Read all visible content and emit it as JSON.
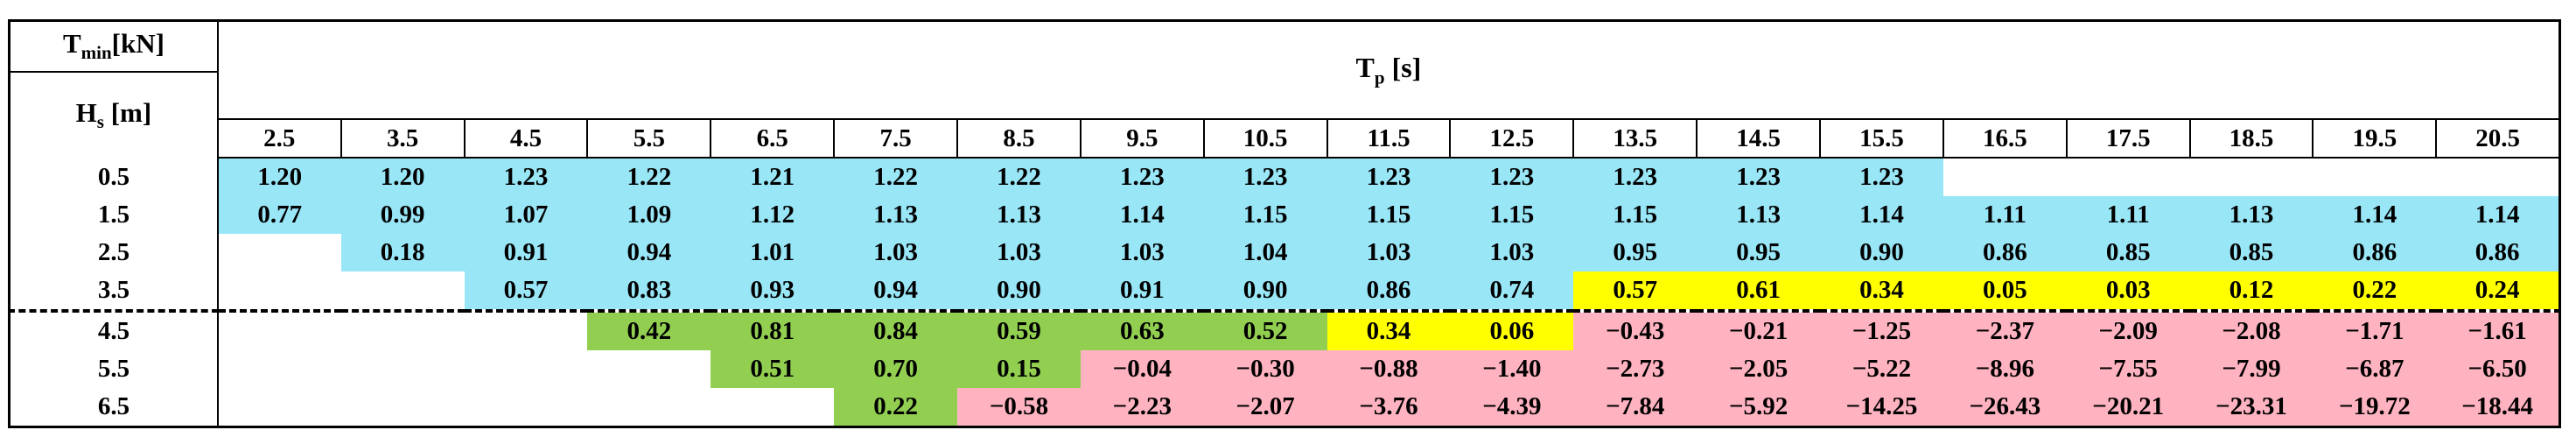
{
  "header": {
    "tmin_main": "T",
    "tmin_sub": "min",
    "tmin_unit": "[kN]",
    "hs_main": "H",
    "hs_sub": "s",
    "hs_unit": " [m]",
    "tp_main": "T",
    "tp_sub": "p",
    "tp_unit": " [s]"
  },
  "columns": [
    "2.5",
    "3.5",
    "4.5",
    "5.5",
    "6.5",
    "7.5",
    "8.5",
    "9.5",
    "10.5",
    "11.5",
    "12.5",
    "13.5",
    "14.5",
    "15.5",
    "16.5",
    "17.5",
    "18.5",
    "19.5",
    "20.5"
  ],
  "colors": {
    "blue": "#99e6f7",
    "yellow": "#ffff00",
    "green": "#92cf50",
    "pink": "#ffb3c1",
    "empty": "#ffffff"
  },
  "rows": [
    {
      "hs": "0.5",
      "values": [
        "1.20",
        "1.20",
        "1.23",
        "1.22",
        "1.21",
        "1.22",
        "1.22",
        "1.23",
        "1.23",
        "1.23",
        "1.23",
        "1.23",
        "1.23",
        "1.23",
        "",
        "",
        "",
        "",
        ""
      ],
      "fills": [
        "blue",
        "blue",
        "blue",
        "blue",
        "blue",
        "blue",
        "blue",
        "blue",
        "blue",
        "blue",
        "blue",
        "blue",
        "blue",
        "blue",
        "empty",
        "empty",
        "empty",
        "empty",
        "empty"
      ]
    },
    {
      "hs": "1.5",
      "values": [
        "0.77",
        "0.99",
        "1.07",
        "1.09",
        "1.12",
        "1.13",
        "1.13",
        "1.14",
        "1.15",
        "1.15",
        "1.15",
        "1.15",
        "1.13",
        "1.14",
        "1.11",
        "1.11",
        "1.13",
        "1.14",
        "1.14"
      ],
      "fills": [
        "blue",
        "blue",
        "blue",
        "blue",
        "blue",
        "blue",
        "blue",
        "blue",
        "blue",
        "blue",
        "blue",
        "blue",
        "blue",
        "blue",
        "blue",
        "blue",
        "blue",
        "blue",
        "blue"
      ]
    },
    {
      "hs": "2.5",
      "values": [
        "",
        "0.18",
        "0.91",
        "0.94",
        "1.01",
        "1.03",
        "1.03",
        "1.03",
        "1.04",
        "1.03",
        "1.03",
        "0.95",
        "0.95",
        "0.90",
        "0.86",
        "0.85",
        "0.85",
        "0.86",
        "0.86"
      ],
      "fills": [
        "empty",
        "blue",
        "blue",
        "blue",
        "blue",
        "blue",
        "blue",
        "blue",
        "blue",
        "blue",
        "blue",
        "blue",
        "blue",
        "blue",
        "blue",
        "blue",
        "blue",
        "blue",
        "blue"
      ]
    },
    {
      "hs": "3.5",
      "values": [
        "",
        "",
        "0.57",
        "0.83",
        "0.93",
        "0.94",
        "0.90",
        "0.91",
        "0.90",
        "0.86",
        "0.74",
        "0.57",
        "0.61",
        "0.34",
        "0.05",
        "0.03",
        "0.12",
        "0.22",
        "0.24"
      ],
      "fills": [
        "empty",
        "empty",
        "blue",
        "blue",
        "blue",
        "blue",
        "blue",
        "blue",
        "blue",
        "blue",
        "blue",
        "yellow",
        "yellow",
        "yellow",
        "yellow",
        "yellow",
        "yellow",
        "yellow",
        "yellow"
      ]
    },
    {
      "hs": "4.5",
      "values": [
        "",
        "",
        "",
        "0.42",
        "0.81",
        "0.84",
        "0.59",
        "0.63",
        "0.52",
        "0.34",
        "0.06",
        "−0.43",
        "−0.21",
        "−1.25",
        "−2.37",
        "−2.09",
        "−2.08",
        "−1.71",
        "−1.61"
      ],
      "fills": [
        "empty",
        "empty",
        "empty",
        "green",
        "green",
        "green",
        "green",
        "green",
        "green",
        "yellow",
        "yellow",
        "pink",
        "pink",
        "pink",
        "pink",
        "pink",
        "pink",
        "pink",
        "pink"
      ]
    },
    {
      "hs": "5.5",
      "values": [
        "",
        "",
        "",
        "",
        "0.51",
        "0.70",
        "0.15",
        "−0.04",
        "−0.30",
        "−0.88",
        "−1.40",
        "−2.73",
        "−2.05",
        "−5.22",
        "−8.96",
        "−7.55",
        "−7.99",
        "−6.87",
        "−6.50"
      ],
      "fills": [
        "empty",
        "empty",
        "empty",
        "empty",
        "green",
        "green",
        "green",
        "pink",
        "pink",
        "pink",
        "pink",
        "pink",
        "pink",
        "pink",
        "pink",
        "pink",
        "pink",
        "pink",
        "pink"
      ]
    },
    {
      "hs": "6.5",
      "values": [
        "",
        "",
        "",
        "",
        "",
        "0.22",
        "−0.58",
        "−2.23",
        "−2.07",
        "−3.76",
        "−4.39",
        "−7.84",
        "−5.92",
        "−14.25",
        "−26.43",
        "−20.21",
        "−23.31",
        "−19.72",
        "−18.44"
      ],
      "fills": [
        "empty",
        "empty",
        "empty",
        "empty",
        "empty",
        "green",
        "pink",
        "pink",
        "pink",
        "pink",
        "pink",
        "pink",
        "pink",
        "pink",
        "pink",
        "pink",
        "pink",
        "pink",
        "pink"
      ]
    }
  ]
}
